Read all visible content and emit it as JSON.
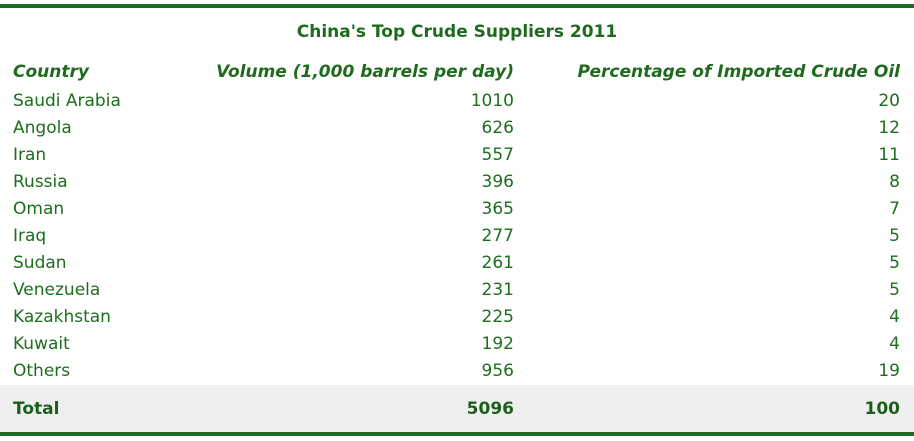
{
  "chart_data": {
    "type": "table",
    "title": "China's Top Crude Suppliers 2011",
    "columns": [
      "Country",
      "Volume (1,000 barrels per day)",
      "Percentage of Imported Crude Oil"
    ],
    "rows": [
      {
        "country": "Saudi Arabia",
        "volume": "1010",
        "pct": "20"
      },
      {
        "country": "Angola",
        "volume": "626",
        "pct": "12"
      },
      {
        "country": "Iran",
        "volume": "557",
        "pct": "11"
      },
      {
        "country": "Russia",
        "volume": "396",
        "pct": "8"
      },
      {
        "country": "Oman",
        "volume": "365",
        "pct": "7"
      },
      {
        "country": "Iraq",
        "volume": "277",
        "pct": "5"
      },
      {
        "country": "Sudan",
        "volume": "261",
        "pct": "5"
      },
      {
        "country": "Venezuela",
        "volume": "231",
        "pct": "5"
      },
      {
        "country": "Kazakhstan",
        "volume": "225",
        "pct": "4"
      },
      {
        "country": "Kuwait",
        "volume": "192",
        "pct": "4"
      },
      {
        "country": "Others",
        "volume": "956",
        "pct": "19"
      }
    ],
    "total": {
      "label": "Total",
      "volume": "5096",
      "pct": "100"
    }
  },
  "colors": {
    "accent": "#1b6e1b",
    "text": "#1d6e1d",
    "total_band": "#efefef"
  }
}
